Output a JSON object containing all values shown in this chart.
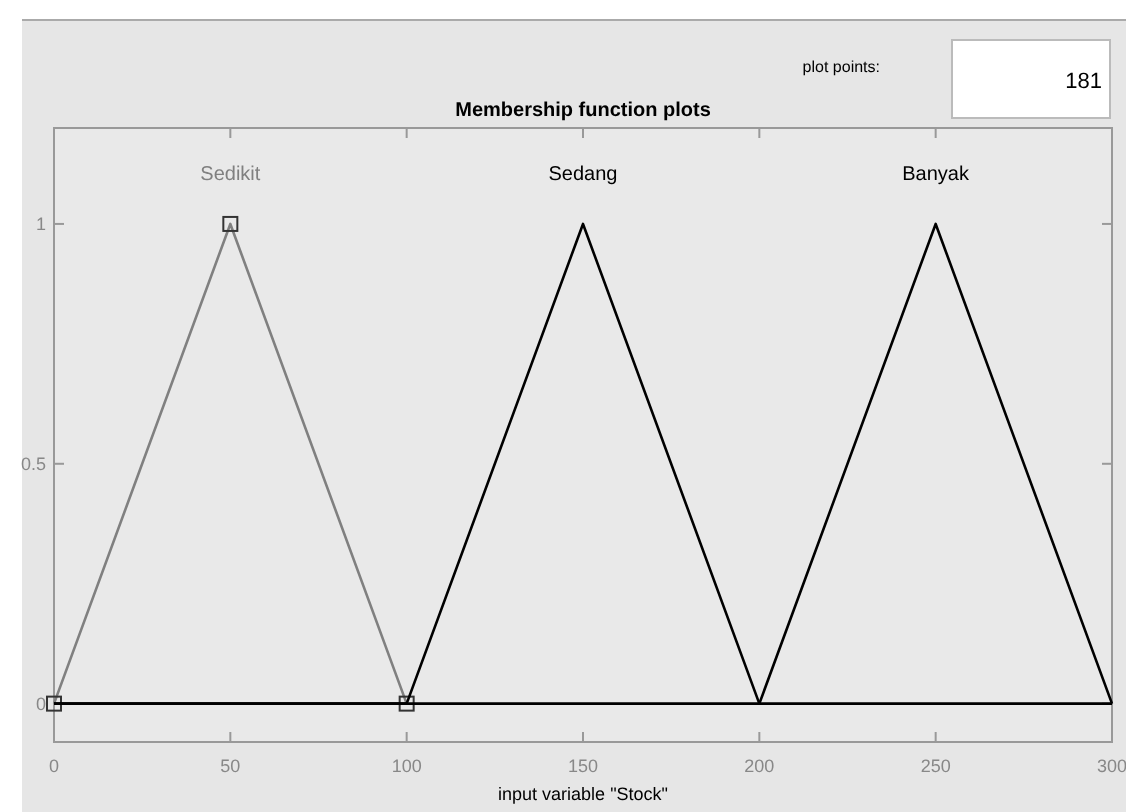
{
  "chart_data": {
    "type": "line",
    "title": "Membership function plots",
    "xlabel": "input variable \"Stock\"",
    "series": [
      {
        "name": "Sedikit",
        "color": "#808080",
        "marker": "square",
        "x": [
          0,
          50,
          100
        ],
        "values": [
          0,
          1,
          0
        ]
      },
      {
        "name": "Sedang",
        "color": "#000000",
        "marker": "none",
        "x": [
          0,
          100,
          150,
          200,
          300
        ],
        "values": [
          0,
          0,
          1,
          0,
          0
        ]
      },
      {
        "name": "Banyak",
        "color": "#000000",
        "marker": "none",
        "x": [
          0,
          200,
          250,
          300
        ],
        "values": [
          0,
          0,
          1,
          0
        ]
      }
    ],
    "xlim": [
      0,
      300
    ],
    "xticks": [
      0,
      50,
      100,
      150,
      200,
      250,
      300
    ],
    "ylim": [
      -0.08,
      1.2
    ],
    "yticks": [
      0,
      0.5,
      1
    ],
    "grid": false,
    "legend": false,
    "annotations": [
      "plot points:",
      "181"
    ]
  }
}
